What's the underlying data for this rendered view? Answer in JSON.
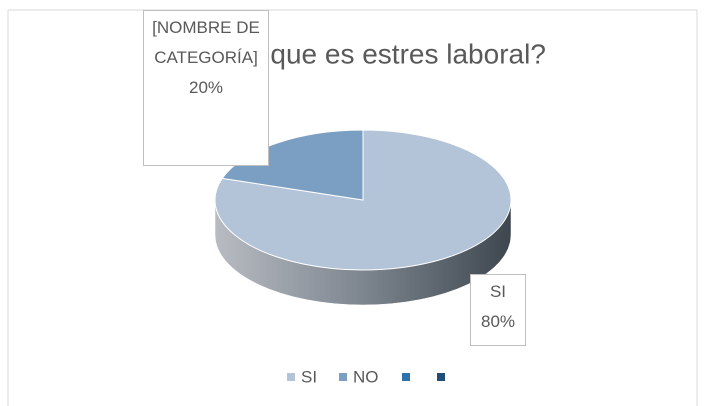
{
  "chart_data": {
    "type": "pie",
    "title": "¿Sabe que es estres laboral?",
    "categories": [
      "SI",
      "NO",
      null,
      null
    ],
    "values": [
      80,
      20,
      null,
      null
    ],
    "value_labels": [
      "80%",
      "20%",
      null,
      null
    ],
    "label_texts": [
      "SI",
      "[NOMBRE DE CATEGORÍA]",
      null,
      null
    ],
    "colors": [
      "#b3c3d8",
      "#7a9fc3",
      "#2e72ad",
      "#1f4e79"
    ],
    "legend": "bottom"
  }
}
